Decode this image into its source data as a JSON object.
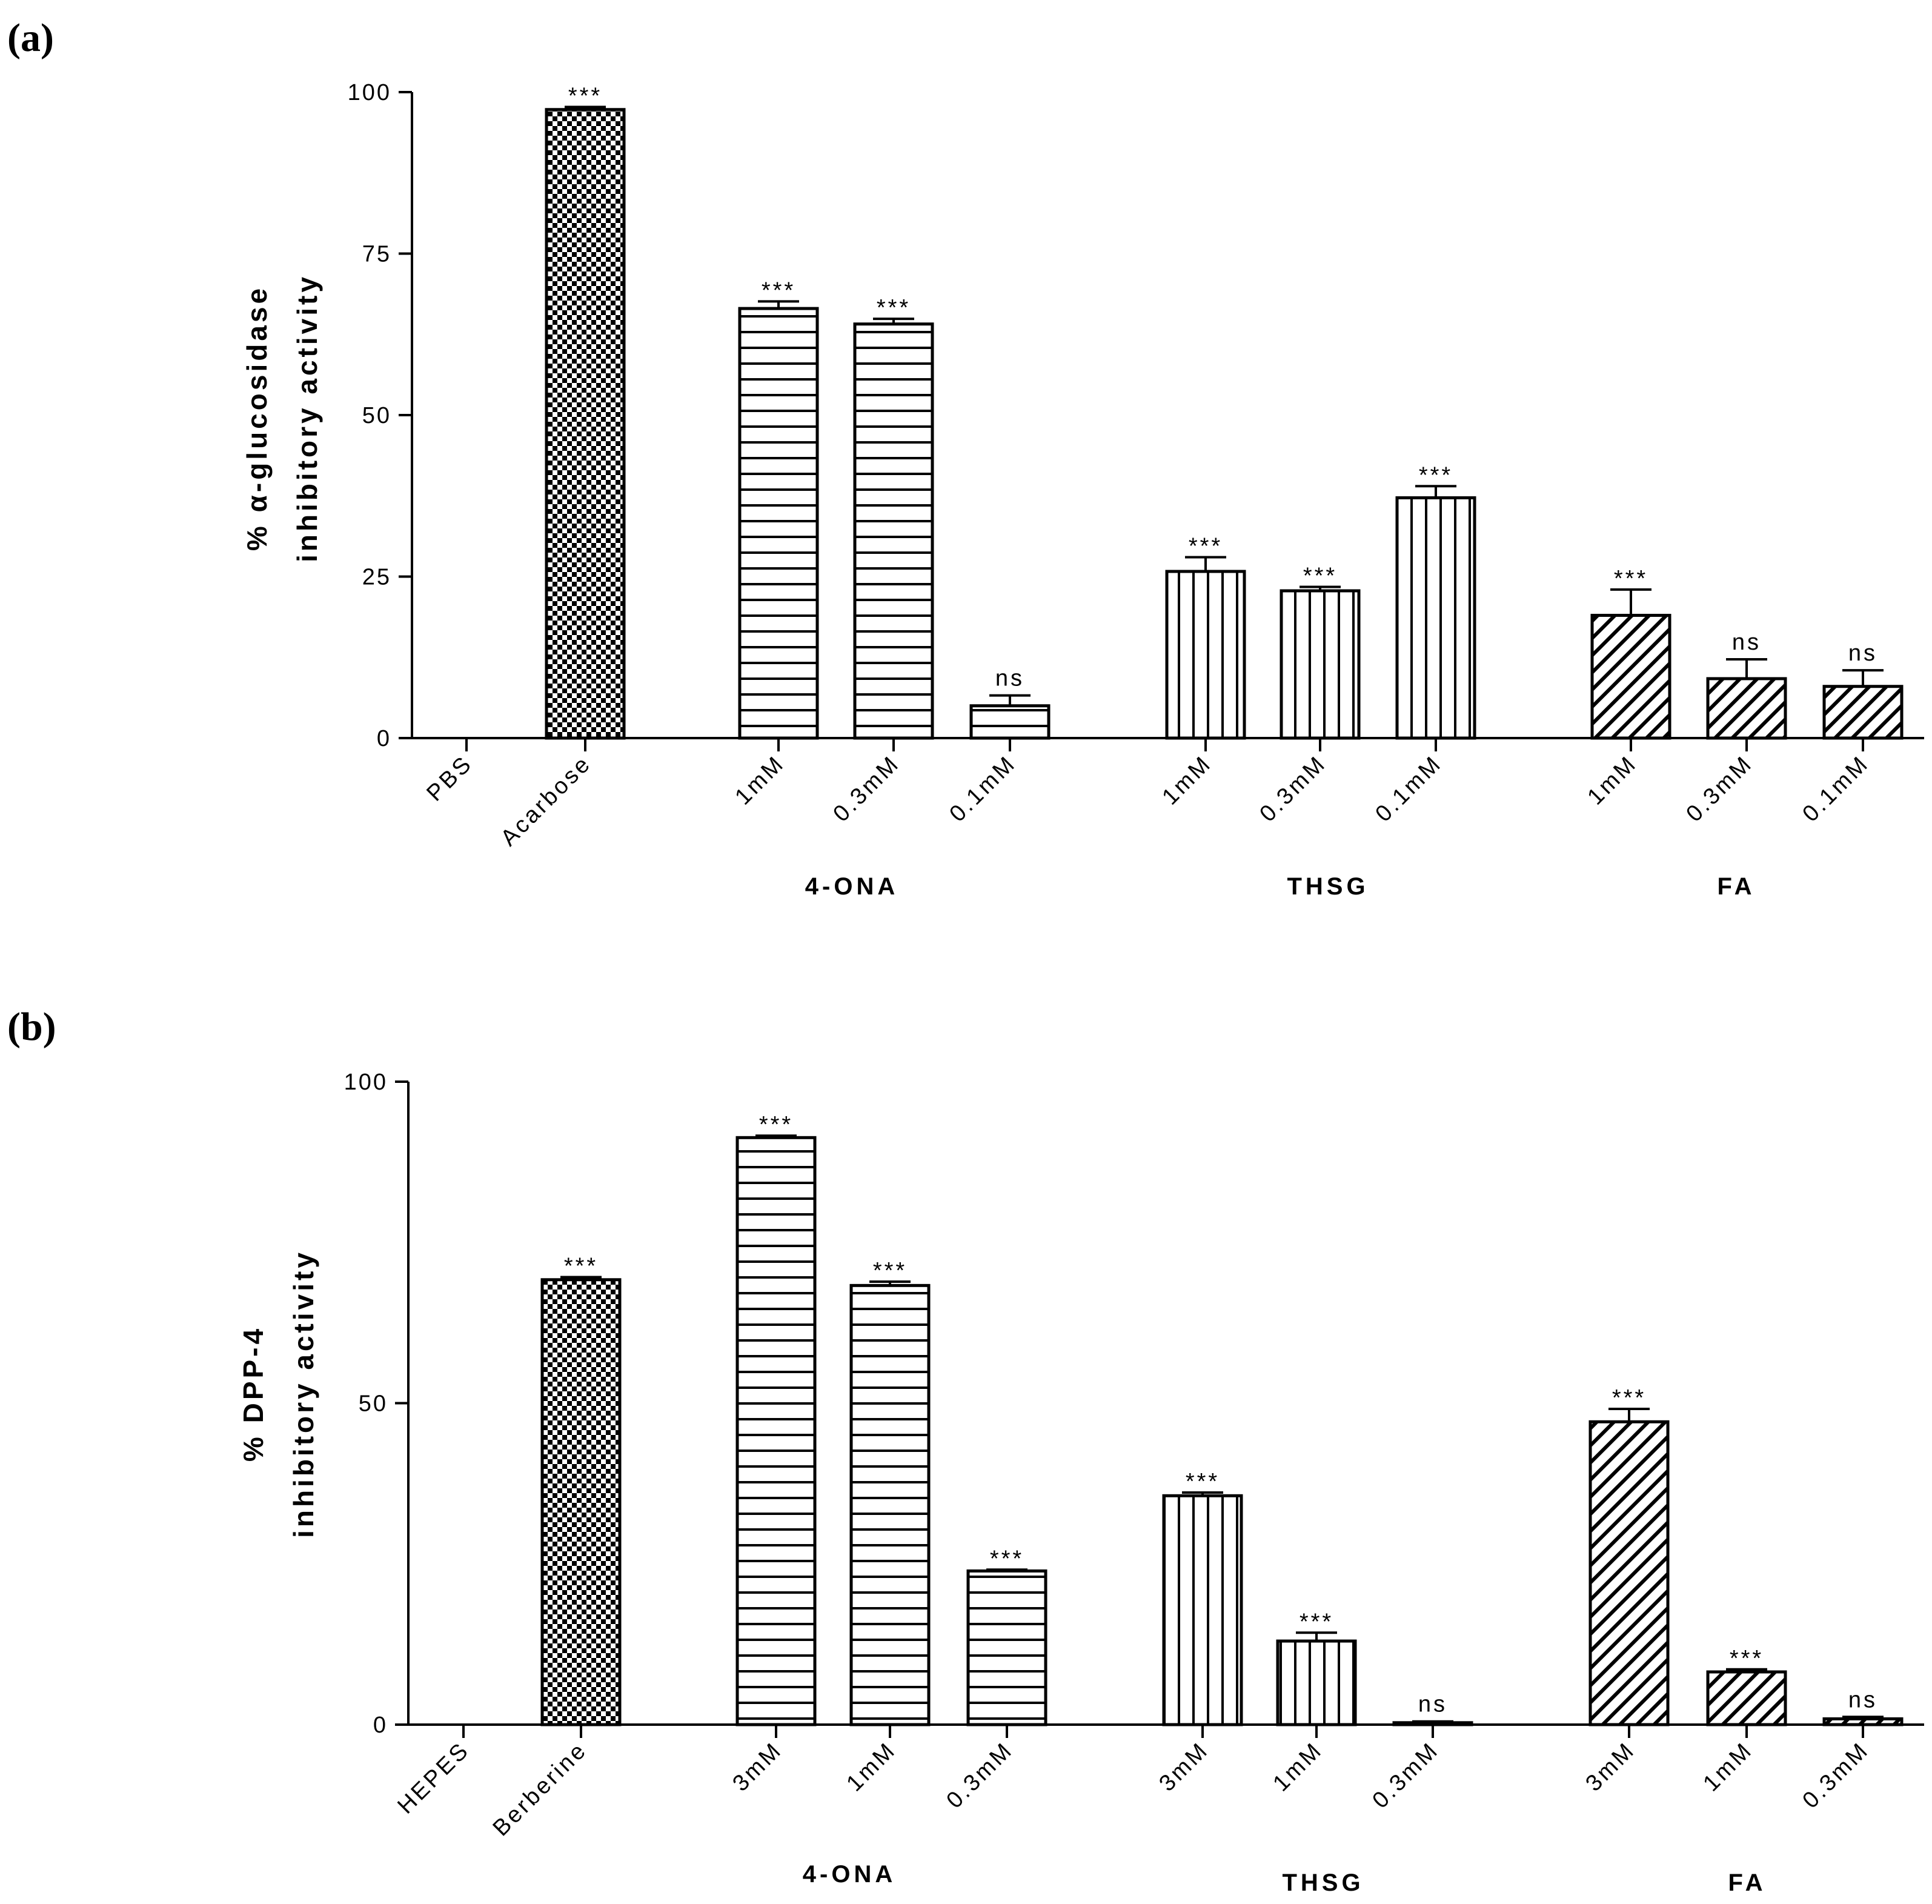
{
  "chart_data": [
    {
      "panel": "(a)",
      "type": "bar",
      "ylabel": [
        "% α-glucosidase",
        "inhibitory activity"
      ],
      "ylim": [
        0,
        100
      ],
      "yticks": [
        0,
        25,
        50,
        75,
        100
      ],
      "bars": [
        {
          "label": "PBS",
          "value": 0,
          "error": 0,
          "sig": "",
          "pattern": "none"
        },
        {
          "label": "Acarbose",
          "value": 97.3,
          "error": 0.4,
          "sig": "***",
          "pattern": "checker"
        },
        {
          "label": "1mM",
          "group": "4-ONA",
          "value": 66.5,
          "error": 1.1,
          "sig": "***",
          "pattern": "hlines"
        },
        {
          "label": "0.3mM",
          "group": "4-ONA",
          "value": 64.1,
          "error": 0.8,
          "sig": "***",
          "pattern": "hlines"
        },
        {
          "label": "0.1mM",
          "group": "4-ONA",
          "value": 5.0,
          "error": 1.6,
          "sig": "ns",
          "pattern": "hlines"
        },
        {
          "label": "1mM",
          "group": "THSG",
          "value": 25.8,
          "error": 2.2,
          "sig": "***",
          "pattern": "vlines"
        },
        {
          "label": "0.3mM",
          "group": "THSG",
          "value": 22.8,
          "error": 0.6,
          "sig": "***",
          "pattern": "vlines"
        },
        {
          "label": "0.1mM",
          "group": "THSG",
          "value": 37.2,
          "error": 1.8,
          "sig": "***",
          "pattern": "vlines"
        },
        {
          "label": "1mM",
          "group": "FA",
          "value": 19.0,
          "error": 4.0,
          "sig": "***",
          "pattern": "diag"
        },
        {
          "label": "0.3mM",
          "group": "FA",
          "value": 9.2,
          "error": 3.0,
          "sig": "ns",
          "pattern": "diag"
        },
        {
          "label": "0.1mM",
          "group": "FA",
          "value": 8.0,
          "error": 2.5,
          "sig": "ns",
          "pattern": "diag"
        }
      ],
      "groups": [
        "4-ONA",
        "THSG",
        "FA"
      ]
    },
    {
      "panel": "(b)",
      "type": "bar",
      "ylabel": [
        "% DPP-4",
        "inhibitory activity"
      ],
      "ylim": [
        0,
        100
      ],
      "yticks": [
        0,
        50,
        100
      ],
      "bars": [
        {
          "label": "HEPES",
          "value": 0,
          "error": 0,
          "sig": "",
          "pattern": "none"
        },
        {
          "label": "Berberine",
          "value": 69.2,
          "error": 0.4,
          "sig": "***",
          "pattern": "checker"
        },
        {
          "label": "3mM",
          "group": "4-ONA",
          "value": 91.3,
          "error": 0.3,
          "sig": "***",
          "pattern": "hlines"
        },
        {
          "label": "1mM",
          "group": "4-ONA",
          "value": 68.3,
          "error": 0.6,
          "sig": "***",
          "pattern": "hlines"
        },
        {
          "label": "0.3mM",
          "group": "4-ONA",
          "value": 23.9,
          "error": 0.2,
          "sig": "***",
          "pattern": "hlines"
        },
        {
          "label": "3mM",
          "group": "THSG",
          "value": 35.6,
          "error": 0.5,
          "sig": "***",
          "pattern": "vlines"
        },
        {
          "label": "1mM",
          "group": "THSG",
          "value": 13.0,
          "error": 1.3,
          "sig": "***",
          "pattern": "vlines"
        },
        {
          "label": "0.3mM",
          "group": "THSG",
          "value": 0.3,
          "error": 0.2,
          "sig": "ns",
          "pattern": "vlines"
        },
        {
          "label": "3mM",
          "group": "FA",
          "value": 47.1,
          "error": 2.0,
          "sig": "***",
          "pattern": "diag"
        },
        {
          "label": "1mM",
          "group": "FA",
          "value": 8.2,
          "error": 0.4,
          "sig": "***",
          "pattern": "diag"
        },
        {
          "label": "0.3mM",
          "group": "FA",
          "value": 0.9,
          "error": 0.3,
          "sig": "ns",
          "pattern": "diag"
        }
      ],
      "groups": [
        "4-ONA",
        "THSG",
        "FA"
      ]
    }
  ]
}
